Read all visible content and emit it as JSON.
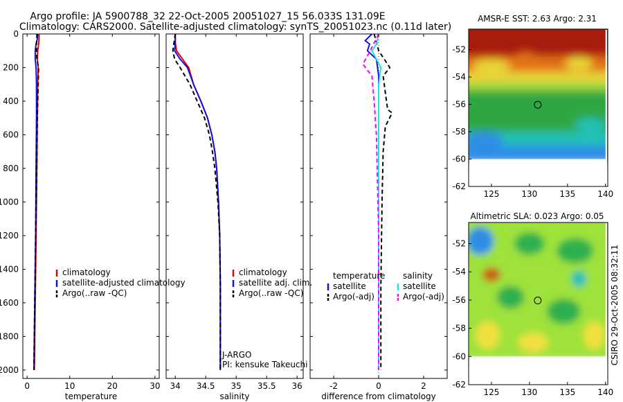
{
  "title": {
    "line1": "Argo profile: JA 5900788_32 22-Oct-2005 20051027_15 56.033S 131.09E",
    "line2": "Climatology: CARS2000. Satellite-adjusted climatology: synTS_20051023.nc (0.11d later)"
  },
  "timestamp": "CSIRO 29-Oct-2005 08:32:11",
  "colors": {
    "climatology": "#e00000",
    "satellite": "#1010e0",
    "argo": "#000000",
    "cyan": "#22e0e0",
    "magenta": "#ff00ff"
  },
  "chart_data": [
    {
      "id": "temperature",
      "type": "line",
      "xlabel": "temperature",
      "ylabel": "",
      "xlim": [
        -1,
        31
      ],
      "ylim": [
        2050,
        0
      ],
      "xticks": [
        0,
        10,
        20,
        30
      ],
      "yticks": [
        0,
        200,
        400,
        600,
        800,
        1000,
        1200,
        1400,
        1600,
        1800,
        2000
      ],
      "legend": [
        {
          "label": "climatology",
          "color": "#e00000",
          "dash": ""
        },
        {
          "label": "satellite-adjusted climatology",
          "color": "#1010e0",
          "dash": ""
        },
        {
          "label": "Argo(..raw -QC)",
          "color": "#000000",
          "dash": "6,4"
        }
      ],
      "annotations": [],
      "series": [
        {
          "name": "climatology",
          "color": "#e00000",
          "dash": "",
          "width": 2,
          "points": [
            [
              2.8,
              0
            ],
            [
              2.8,
              30
            ],
            [
              2.7,
              60
            ],
            [
              2.5,
              100
            ],
            [
              2.4,
              150
            ],
            [
              2.6,
              200
            ],
            [
              2.5,
              300
            ],
            [
              2.4,
              500
            ],
            [
              2.3,
              800
            ],
            [
              2.1,
              1200
            ],
            [
              1.9,
              1600
            ],
            [
              1.7,
              2000
            ]
          ]
        },
        {
          "name": "satellite-adjusted climatology",
          "color": "#1010e0",
          "dash": "",
          "width": 2,
          "points": [
            [
              2.5,
              0
            ],
            [
              2.4,
              30
            ],
            [
              2.1,
              60
            ],
            [
              1.9,
              100
            ],
            [
              1.9,
              150
            ],
            [
              2.1,
              200
            ],
            [
              2.2,
              300
            ],
            [
              2.2,
              500
            ],
            [
              2.1,
              800
            ],
            [
              2.0,
              1200
            ],
            [
              1.8,
              1600
            ],
            [
              1.6,
              2000
            ]
          ]
        },
        {
          "name": "Argo(..raw -QC)",
          "color": "#000000",
          "dash": "6,4",
          "width": 2,
          "points": [
            [
              2.3,
              0
            ],
            [
              2.3,
              30
            ],
            [
              2.2,
              60
            ],
            [
              2.2,
              100
            ],
            [
              2.3,
              150
            ],
            [
              2.7,
              200
            ],
            [
              2.6,
              300
            ],
            [
              2.4,
              500
            ],
            [
              2.2,
              800
            ],
            [
              2.0,
              1200
            ],
            [
              1.8,
              1600
            ],
            [
              1.6,
              2000
            ]
          ]
        }
      ]
    },
    {
      "id": "salinity",
      "type": "line",
      "xlabel": "salinity",
      "ylabel": "",
      "xlim": [
        33.85,
        36.1
      ],
      "ylim": [
        2050,
        0
      ],
      "xticks": [
        34,
        34.5,
        35,
        35.5,
        36
      ],
      "yticks": [
        0,
        200,
        400,
        600,
        800,
        1000,
        1200,
        1400,
        1600,
        1800,
        2000
      ],
      "legend": [
        {
          "label": "climatology",
          "color": "#e00000",
          "dash": ""
        },
        {
          "label": "satellite adj. clim.",
          "color": "#1010e0",
          "dash": ""
        },
        {
          "label": "Argo(..raw -QC)",
          "color": "#000000",
          "dash": "6,4"
        }
      ],
      "annotations": [
        "J-ARGO",
        "PI: kensuke Takeuchi"
      ],
      "series": [
        {
          "name": "climatology",
          "color": "#e00000",
          "dash": "",
          "width": 2,
          "points": [
            [
              34.0,
              0
            ],
            [
              34.0,
              50
            ],
            [
              34.02,
              100
            ],
            [
              34.12,
              150
            ],
            [
              34.22,
              200
            ],
            [
              34.3,
              300
            ],
            [
              34.42,
              400
            ],
            [
              34.53,
              500
            ],
            [
              34.6,
              600
            ],
            [
              34.65,
              700
            ],
            [
              34.68,
              800
            ],
            [
              34.71,
              1000
            ],
            [
              34.73,
              1200
            ],
            [
              34.74,
              1500
            ],
            [
              34.74,
              2000
            ]
          ]
        },
        {
          "name": "satellite adj. clim.",
          "color": "#1010e0",
          "dash": "",
          "width": 2,
          "points": [
            [
              34.0,
              0
            ],
            [
              34.0,
              50
            ],
            [
              33.99,
              100
            ],
            [
              34.08,
              150
            ],
            [
              34.2,
              200
            ],
            [
              34.3,
              300
            ],
            [
              34.42,
              400
            ],
            [
              34.53,
              500
            ],
            [
              34.6,
              600
            ],
            [
              34.65,
              700
            ],
            [
              34.68,
              800
            ],
            [
              34.71,
              1000
            ],
            [
              34.73,
              1200
            ],
            [
              34.74,
              1500
            ],
            [
              34.74,
              2000
            ]
          ]
        },
        {
          "name": "Argo(..raw -QC)",
          "color": "#000000",
          "dash": "6,4",
          "width": 2,
          "points": [
            [
              34.0,
              0
            ],
            [
              33.96,
              100
            ],
            [
              33.99,
              150
            ],
            [
              34.08,
              200
            ],
            [
              34.24,
              300
            ],
            [
              34.36,
              400
            ],
            [
              34.48,
              500
            ],
            [
              34.56,
              600
            ],
            [
              34.61,
              700
            ],
            [
              34.65,
              800
            ],
            [
              34.7,
              1000
            ],
            [
              34.73,
              1200
            ],
            [
              34.74,
              1500
            ],
            [
              34.74,
              2000
            ]
          ]
        }
      ]
    },
    {
      "id": "difference",
      "type": "line",
      "xlabel": "difference from climatology",
      "ylabel": "",
      "xlim": [
        -3.05,
        3.05
      ],
      "ylim": [
        2050,
        0
      ],
      "xticks": [
        -2,
        0,
        2
      ],
      "yticks": [
        0,
        200,
        400,
        600,
        800,
        1000,
        1200,
        1400,
        1600,
        1800,
        2000
      ],
      "legend": [
        {
          "label": "temperature",
          "color": "",
          "dash": ""
        },
        {
          "label": "satellite",
          "color": "#1010e0",
          "dash": ""
        },
        {
          "label": "Argo(-adj)",
          "color": "#000000",
          "dash": "6,4"
        },
        {
          "label": "salinity",
          "color": "",
          "dash": ""
        },
        {
          "label": "satellite",
          "color": "#22e0e0",
          "dash": ""
        },
        {
          "label": "Argo(-adj)",
          "color": "#ff00ff",
          "dash": "6,4"
        }
      ],
      "annotations": [],
      "series": [
        {
          "name": "temperature satellite",
          "color": "#1010e0",
          "dash": "",
          "width": 2,
          "points": [
            [
              -0.3,
              0
            ],
            [
              -0.6,
              40
            ],
            [
              -0.4,
              60
            ],
            [
              -0.5,
              100
            ],
            [
              -0.1,
              150
            ],
            [
              0.0,
              250
            ],
            [
              0.0,
              500
            ],
            [
              0.0,
              1000
            ],
            [
              0.0,
              2000
            ]
          ]
        },
        {
          "name": "temperature Argo(-adj)",
          "color": "#000000",
          "dash": "6,4",
          "width": 2,
          "points": [
            [
              -0.2,
              0
            ],
            [
              -0.1,
              50
            ],
            [
              0.0,
              100
            ],
            [
              0.5,
              200
            ],
            [
              0.2,
              250
            ],
            [
              0.3,
              350
            ],
            [
              0.4,
              450
            ],
            [
              0.6,
              470
            ],
            [
              0.3,
              550
            ],
            [
              0.2,
              700
            ],
            [
              0.15,
              1000
            ],
            [
              0.1,
              1500
            ],
            [
              0.1,
              2000
            ]
          ]
        },
        {
          "name": "salinity satellite",
          "color": "#22e0e0",
          "dash": "",
          "width": 2,
          "points": [
            [
              0.0,
              0
            ],
            [
              -0.1,
              60
            ],
            [
              -0.3,
              100
            ],
            [
              0.1,
              200
            ],
            [
              0.0,
              300
            ],
            [
              0.0,
              500
            ],
            [
              0.0,
              1000
            ],
            [
              0.0,
              2000
            ]
          ]
        },
        {
          "name": "salinity Argo(-adj)",
          "color": "#ff00ff",
          "dash": "6,4",
          "width": 2,
          "points": [
            [
              0.0,
              0
            ],
            [
              -0.3,
              80
            ],
            [
              -0.7,
              180
            ],
            [
              -0.3,
              250
            ],
            [
              -0.2,
              400
            ],
            [
              -0.1,
              600
            ],
            [
              -0.05,
              900
            ],
            [
              0.0,
              1200
            ],
            [
              0.0,
              2000
            ]
          ]
        }
      ]
    },
    {
      "id": "sst_map",
      "type": "heatmap",
      "title": "AMSR-E SST: 2.63 Argo: 2.31",
      "xlim": [
        122,
        140.3
      ],
      "ylim": [
        -62,
        -50.5
      ],
      "xticks": [
        125,
        130,
        135,
        140
      ],
      "yticks": [
        -52,
        -54,
        -56,
        -58,
        -60,
        -62
      ],
      "data_extent": {
        "lon": [
          122,
          140
        ],
        "lat": [
          -60,
          -50.5
        ]
      },
      "marker": {
        "lon": 131.09,
        "lat": -56.03
      },
      "bands": [
        {
          "lat": [
            -52.5,
            -50.5
          ],
          "color": "#a81e08"
        },
        {
          "lat": [
            -53.6,
            -52.5
          ],
          "color": "#e27218"
        },
        {
          "lat": [
            -54.4,
            -53.6
          ],
          "color": "#e8d338"
        },
        {
          "lat": [
            -55.0,
            -54.4
          ],
          "color": "#9cd83a"
        },
        {
          "lat": [
            -58.0,
            -55.0
          ],
          "color": "#2fa743"
        },
        {
          "lat": [
            -59.0,
            -58.0
          ],
          "color": "#20c1b6"
        },
        {
          "lat": [
            -60.0,
            -59.0
          ],
          "color": "#2f8ee6"
        }
      ],
      "blobs": [
        {
          "lon": 125.0,
          "lat": -53.2,
          "rlon": 2.5,
          "rlat": 0.5,
          "color": "#e8d338"
        },
        {
          "lon": 129.5,
          "lat": -52.8,
          "rlon": 1.6,
          "rlat": 0.6,
          "color": "#e27218"
        },
        {
          "lon": 136.5,
          "lat": -53.0,
          "rlon": 1.8,
          "rlat": 0.5,
          "color": "#e8d338"
        },
        {
          "lon": 124.0,
          "lat": -58.6,
          "rlon": 2.6,
          "rlat": 0.6,
          "color": "#2f8ee6"
        },
        {
          "lon": 138.0,
          "lat": -57.5,
          "rlon": 2.0,
          "rlat": 0.5,
          "color": "#20c1b6"
        }
      ]
    },
    {
      "id": "sla_map",
      "type": "heatmap",
      "title": "Altimetric SLA: 0.023 Argo: 0.05",
      "xlim": [
        122,
        140.3
      ],
      "ylim": [
        -62,
        -50.5
      ],
      "xticks": [
        125,
        130,
        135,
        140
      ],
      "yticks": [
        -52,
        -54,
        -56,
        -58,
        -60,
        -62
      ],
      "data_extent": {
        "lon": [
          122,
          140
        ],
        "lat": [
          -60,
          -50.5
        ]
      },
      "marker": {
        "lon": 131.09,
        "lat": -56.03
      },
      "bands": [
        {
          "lat": [
            -60.0,
            -50.5
          ],
          "color": "#9ee23a"
        }
      ],
      "blobs": [
        {
          "lon": 123.5,
          "lat": -51.8,
          "rlon": 1.8,
          "rlat": 1.0,
          "color": "#2f8ee6"
        },
        {
          "lon": 125.0,
          "lat": -54.2,
          "rlon": 1.2,
          "rlat": 0.5,
          "color": "#c85a18"
        },
        {
          "lon": 130.0,
          "lat": -52.0,
          "rlon": 2.0,
          "rlat": 0.8,
          "color": "#2fb050"
        },
        {
          "lon": 136.0,
          "lat": -52.5,
          "rlon": 2.4,
          "rlat": 0.9,
          "color": "#2fb050"
        },
        {
          "lon": 127.5,
          "lat": -55.8,
          "rlon": 1.8,
          "rlat": 0.8,
          "color": "#2fb050"
        },
        {
          "lon": 134.5,
          "lat": -56.8,
          "rlon": 2.2,
          "rlat": 0.9,
          "color": "#2fb050"
        },
        {
          "lon": 124.5,
          "lat": -58.5,
          "rlon": 1.6,
          "rlat": 1.0,
          "color": "#f0e040"
        },
        {
          "lon": 130.5,
          "lat": -59.0,
          "rlon": 2.0,
          "rlat": 0.7,
          "color": "#f0e040"
        },
        {
          "lon": 138.5,
          "lat": -58.5,
          "rlon": 1.4,
          "rlat": 1.0,
          "color": "#f0e040"
        },
        {
          "lon": 136.5,
          "lat": -54.5,
          "rlon": 1.0,
          "rlat": 0.6,
          "color": "#20c1b6"
        }
      ]
    }
  ]
}
